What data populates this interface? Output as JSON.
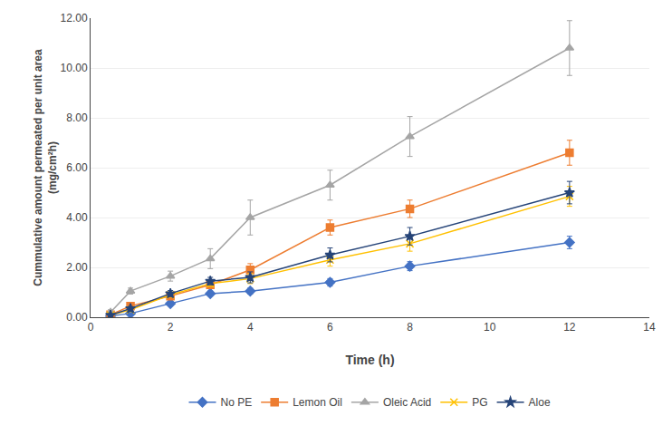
{
  "chart_data": {
    "type": "line",
    "xlabel": "Time (h)",
    "ylabel": "Cummulative amount permeated per unit area\n(mg/cm²h)",
    "x": [
      0.5,
      1,
      2,
      3,
      4,
      6,
      8,
      12
    ],
    "series": [
      {
        "name": "No PE",
        "color": "#4472C4",
        "marker": "diamond",
        "line_style": "solid",
        "values": [
          0.05,
          0.15,
          0.55,
          0.95,
          1.05,
          1.4,
          2.05,
          3.0
        ],
        "yerr": [
          0.05,
          0.08,
          0.08,
          0.1,
          0.12,
          0.15,
          0.18,
          0.25
        ]
      },
      {
        "name": "Lemon Oil",
        "color": "#ED7D31",
        "marker": "square",
        "line_style": "solid",
        "values": [
          0.1,
          0.45,
          0.85,
          1.3,
          1.9,
          3.6,
          4.35,
          6.6
        ],
        "yerr": [
          0.05,
          0.1,
          0.12,
          0.15,
          0.25,
          0.3,
          0.35,
          0.5
        ]
      },
      {
        "name": "Oleic Acid",
        "color": "#A5A5A5",
        "marker": "triangle-up",
        "line_style": "solid",
        "values": [
          0.2,
          1.05,
          1.65,
          2.35,
          4.0,
          5.3,
          7.25,
          10.8
        ],
        "yerr": [
          0.1,
          0.12,
          0.2,
          0.4,
          0.7,
          0.6,
          0.8,
          1.1
        ]
      },
      {
        "name": "PG",
        "color": "#FFC000",
        "marker": "x-thin-open",
        "line_style": "solid",
        "values": [
          0.08,
          0.3,
          0.9,
          1.35,
          1.55,
          2.3,
          2.95,
          4.85
        ],
        "yerr": [
          0.05,
          0.08,
          0.1,
          0.12,
          0.2,
          0.25,
          0.3,
          0.4
        ]
      },
      {
        "name": "Aloe",
        "color": "#264478",
        "marker": "star",
        "line_style": "solid",
        "values": [
          0.08,
          0.35,
          0.95,
          1.45,
          1.6,
          2.5,
          3.25,
          5.0
        ],
        "yerr": [
          0.05,
          0.08,
          0.12,
          0.15,
          0.22,
          0.28,
          0.35,
          0.45
        ]
      }
    ],
    "xlim": [
      0,
      14
    ],
    "ylim": [
      0,
      12
    ],
    "xticks": [
      0,
      2,
      4,
      6,
      8,
      10,
      12,
      14
    ],
    "yticks": [
      {
        "value": 0,
        "label": "0.00"
      },
      {
        "value": 2,
        "label": "2.00"
      },
      {
        "value": 4,
        "label": "4.00"
      },
      {
        "value": 6,
        "label": "6.00"
      },
      {
        "value": 8,
        "label": "8.00"
      },
      {
        "value": 10,
        "label": "10.00"
      },
      {
        "value": 12,
        "label": "12.00"
      }
    ],
    "grid": true,
    "legend": "bottom"
  }
}
